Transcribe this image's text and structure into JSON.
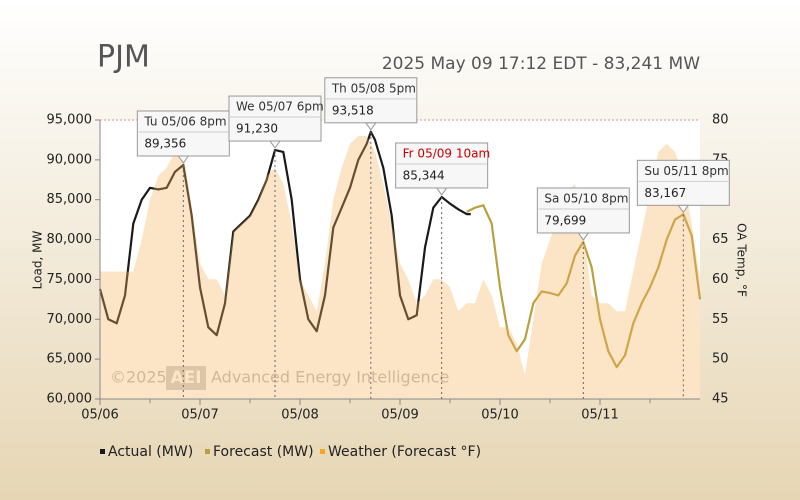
{
  "chart_data": {
    "type": "line",
    "title": "PJM",
    "subtitle": "2025 May 09 17:12 EDT - 83,241 MW",
    "ylabel": "Load, MW",
    "y2label": "OA Temp, °F",
    "watermark": [
      "©2025",
      "AEI",
      "Advanced Energy Intelligence"
    ],
    "xlim": [
      0,
      144
    ],
    "xticks": [
      {
        "value": 0,
        "label": "05/06"
      },
      {
        "value": 24,
        "label": "05/07"
      },
      {
        "value": 48,
        "label": "05/08"
      },
      {
        "value": 72,
        "label": "05/09"
      },
      {
        "value": 96,
        "label": "05/10"
      },
      {
        "value": 120,
        "label": "05/11"
      }
    ],
    "ylim": [
      60000,
      95000
    ],
    "yticks": [
      {
        "value": 60000,
        "label": "60,000"
      },
      {
        "value": 65000,
        "label": "65,000"
      },
      {
        "value": 70000,
        "label": "70,000"
      },
      {
        "value": 75000,
        "label": "75,000"
      },
      {
        "value": 80000,
        "label": "80,000"
      },
      {
        "value": 85000,
        "label": "85,000"
      },
      {
        "value": 90000,
        "label": "90,000"
      },
      {
        "value": 95000,
        "label": "95,000"
      }
    ],
    "y2lim": [
      45,
      80
    ],
    "y2ticks": [
      45,
      50,
      55,
      60,
      65,
      70,
      75,
      80
    ],
    "series": [
      {
        "name": "Actual (MW)",
        "color": "#1a1a1a",
        "kind": "line",
        "x": [
          0,
          2,
          4,
          6,
          8,
          10,
          12,
          14,
          16,
          18,
          20,
          22,
          24,
          26,
          28,
          30,
          32,
          34,
          36,
          38,
          40,
          42,
          44,
          46,
          48,
          50,
          52,
          54,
          56,
          58,
          60,
          62,
          64,
          65,
          66,
          68,
          70,
          72,
          74,
          76,
          78,
          80,
          82,
          84,
          86,
          88,
          89
        ],
        "values": [
          73800,
          70000,
          69500,
          73000,
          82000,
          85000,
          86500,
          86300,
          86500,
          88500,
          89356,
          83000,
          74000,
          69000,
          68000,
          72000,
          81000,
          82000,
          83000,
          85000,
          87500,
          91230,
          91000,
          85000,
          75000,
          70000,
          68500,
          73000,
          81500,
          84000,
          86500,
          90000,
          92000,
          93518,
          92500,
          89000,
          83000,
          73000,
          70000,
          70500,
          79000,
          84000,
          85344,
          84500,
          83800,
          83200,
          83200
        ]
      },
      {
        "name": "Forecast (MW)",
        "color": "#b9a041",
        "kind": "line",
        "x": [
          88,
          90,
          92,
          94,
          96,
          98,
          100,
          102,
          104,
          106,
          108,
          110,
          112,
          114,
          116,
          118,
          120,
          122,
          124,
          126,
          128,
          130,
          132,
          134,
          136,
          138,
          140,
          142,
          144
        ],
        "values": [
          83500,
          84000,
          84300,
          82000,
          74000,
          68000,
          66000,
          67500,
          72000,
          73500,
          73300,
          73000,
          74500,
          78000,
          79699,
          76500,
          70000,
          66000,
          64000,
          65500,
          69500,
          72000,
          74000,
          76500,
          80000,
          82500,
          83167,
          80500,
          72500
        ]
      },
      {
        "name": "Weather (Forecast °F)",
        "color": "#f7b25c",
        "kind": "area",
        "axis": "y2",
        "x": [
          0,
          2,
          4,
          6,
          8,
          10,
          12,
          14,
          16,
          18,
          20,
          22,
          24,
          26,
          28,
          30,
          32,
          34,
          36,
          38,
          40,
          42,
          44,
          46,
          48,
          50,
          52,
          54,
          56,
          58,
          60,
          62,
          64,
          66,
          68,
          70,
          72,
          74,
          76,
          78,
          80,
          82,
          84,
          86,
          88,
          90,
          92,
          94,
          96,
          98,
          100,
          102,
          104,
          106,
          108,
          110,
          112,
          114,
          116,
          118,
          120,
          122,
          124,
          126,
          128,
          130,
          132,
          134,
          136,
          138,
          140,
          142,
          144
        ],
        "values": [
          61,
          61,
          61,
          61,
          61,
          65,
          70,
          73,
          74,
          76,
          76,
          69,
          62,
          60,
          60,
          58,
          66,
          67,
          68,
          70,
          73,
          74,
          72,
          67,
          60,
          58,
          56,
          62,
          70,
          74,
          77,
          78,
          78,
          76,
          72,
          67,
          62,
          60,
          57,
          58,
          60,
          60,
          59,
          56,
          57,
          57,
          60,
          58,
          54,
          54,
          52,
          48,
          55,
          62,
          65,
          68,
          71,
          72,
          66,
          58,
          57,
          57,
          56,
          56,
          61,
          66,
          71,
          76,
          77,
          76,
          73,
          67,
          60
        ]
      }
    ],
    "annotations": [
      {
        "label": "Tu 05/06 8pm",
        "x": 20,
        "value": 89356,
        "value_label": "89,356",
        "color": "#333333"
      },
      {
        "label": "We 05/07 6pm",
        "x": 42,
        "value": 91230,
        "value_label": "91,230",
        "color": "#333333"
      },
      {
        "label": "Th 05/08 5pm",
        "x": 65,
        "value": 93518,
        "value_label": "93,518",
        "color": "#333333"
      },
      {
        "label": "Fr 05/09 10am",
        "x": 82,
        "value": 85344,
        "value_label": "85,344",
        "color": "#cc0000"
      },
      {
        "label": "Sa 05/10 8pm",
        "x": 116,
        "value": 79699,
        "value_label": "79,699",
        "color": "#333333"
      },
      {
        "label": "Su 05/11 8pm",
        "x": 140,
        "value": 83167,
        "value_label": "83,167",
        "color": "#333333"
      }
    ]
  }
}
